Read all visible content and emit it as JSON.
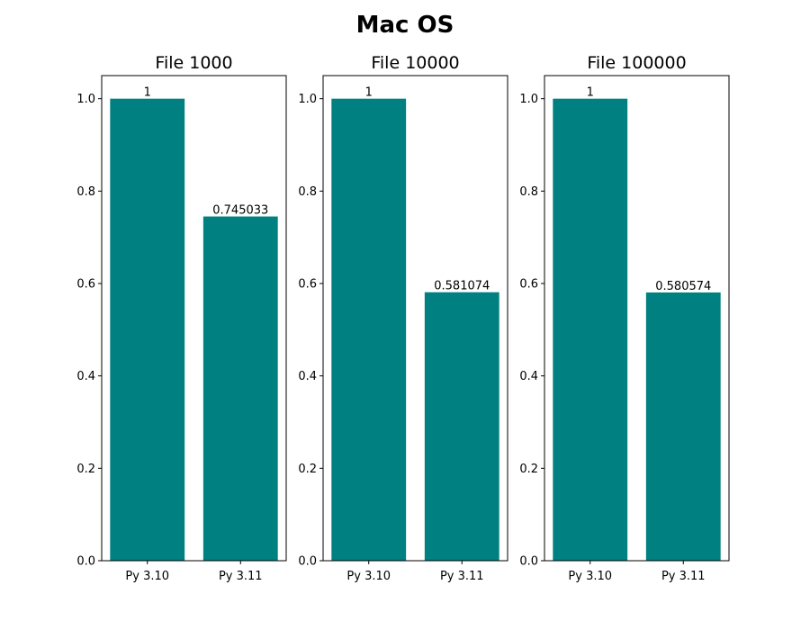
{
  "figure": {
    "title": "Mac OS"
  },
  "colors": {
    "bar": "#008080",
    "axes": "#000000",
    "background": "#ffffff"
  },
  "chart_data": [
    {
      "type": "bar",
      "title": "File 1000",
      "categories": [
        "Py 3.10",
        "Py 3.11"
      ],
      "values": [
        1,
        0.745033
      ],
      "data_labels": [
        "1",
        "0.745033"
      ],
      "xlabel": "",
      "ylabel": "",
      "ylim": [
        0,
        1.05
      ],
      "yticks": [
        0.0,
        0.2,
        0.4,
        0.6,
        0.8,
        1.0
      ],
      "ytick_labels": [
        "0.0",
        "0.2",
        "0.4",
        "0.6",
        "0.8",
        "1.0"
      ],
      "grid": false,
      "legend": false
    },
    {
      "type": "bar",
      "title": "File 10000",
      "categories": [
        "Py 3.10",
        "Py 3.11"
      ],
      "values": [
        1,
        0.581074
      ],
      "data_labels": [
        "1",
        "0.581074"
      ],
      "xlabel": "",
      "ylabel": "",
      "ylim": [
        0,
        1.05
      ],
      "yticks": [
        0.0,
        0.2,
        0.4,
        0.6,
        0.8,
        1.0
      ],
      "ytick_labels": [
        "0.0",
        "0.2",
        "0.4",
        "0.6",
        "0.8",
        "1.0"
      ],
      "grid": false,
      "legend": false
    },
    {
      "type": "bar",
      "title": "File 100000",
      "categories": [
        "Py 3.10",
        "Py 3.11"
      ],
      "values": [
        1,
        0.580574
      ],
      "data_labels": [
        "1",
        "0.580574"
      ],
      "xlabel": "",
      "ylabel": "",
      "ylim": [
        0,
        1.05
      ],
      "yticks": [
        0.0,
        0.2,
        0.4,
        0.6,
        0.8,
        1.0
      ],
      "ytick_labels": [
        "0.0",
        "0.2",
        "0.4",
        "0.6",
        "0.8",
        "1.0"
      ],
      "grid": false,
      "legend": false
    }
  ]
}
